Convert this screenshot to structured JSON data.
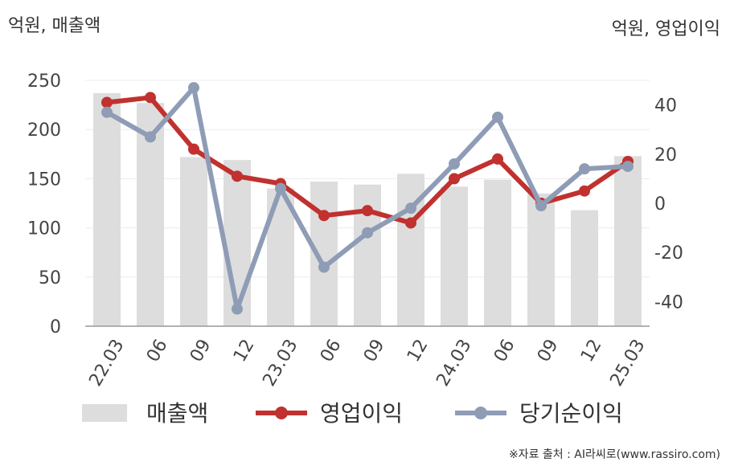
{
  "header": {
    "left_unit": "억원, 매출액",
    "right_unit": "억원, 영업이익"
  },
  "footer": {
    "source": "※자료 출처 : AI라씨로(www.rassiro.com)"
  },
  "chart_data": {
    "type": "bar",
    "categories": [
      "22.03",
      "06",
      "09",
      "12",
      "23.03",
      "06",
      "09",
      "12",
      "24.03",
      "06",
      "09",
      "12",
      "25.03"
    ],
    "series": [
      {
        "name": "매출액",
        "type": "bar",
        "axis": "left",
        "color": "#dddddd",
        "values": [
          237,
          227,
          172,
          169,
          140,
          147,
          144,
          155,
          142,
          149,
          135,
          118,
          173
        ]
      },
      {
        "name": "영업이익",
        "type": "line",
        "axis": "right",
        "color": "#c0312f",
        "values": [
          41,
          43,
          22,
          11,
          8,
          -5,
          -3,
          -8,
          10,
          18,
          0,
          5,
          17
        ]
      },
      {
        "name": "당기순이익",
        "type": "line",
        "axis": "right",
        "color": "#8f9cb6",
        "values": [
          37,
          27,
          47,
          -43,
          6,
          -26,
          -12,
          -2,
          16,
          35,
          -1,
          14,
          15
        ]
      }
    ],
    "y_left": {
      "ylim": [
        0,
        250
      ],
      "ticks": [
        0,
        50,
        100,
        150,
        200,
        250
      ]
    },
    "y_right": {
      "ylim": [
        -50,
        50
      ],
      "ticks": [
        -40,
        -20,
        0,
        20,
        40
      ]
    },
    "grid": true,
    "legend_position": "bottom"
  }
}
